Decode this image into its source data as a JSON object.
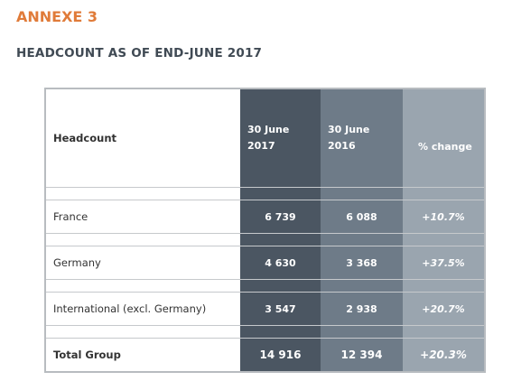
{
  "header": {
    "annex": "ANNEXE 3",
    "title": "HEADCOUNT AS OF END-JUNE 2017"
  },
  "table": {
    "columns": [
      "Headcount",
      "30 June 2017",
      "30 June 2016",
      "% change"
    ],
    "rows": [
      [
        "France",
        "6 739",
        "6 088",
        "+10.7%"
      ],
      [
        "Germany",
        "4 630",
        "3 368",
        "+37.5%"
      ],
      [
        "International (excl. Germany)",
        "3 547",
        "2 938",
        "+20.7%"
      ],
      [
        "Total Group",
        "14 916",
        "12 394",
        "+20.3%"
      ]
    ]
  }
}
